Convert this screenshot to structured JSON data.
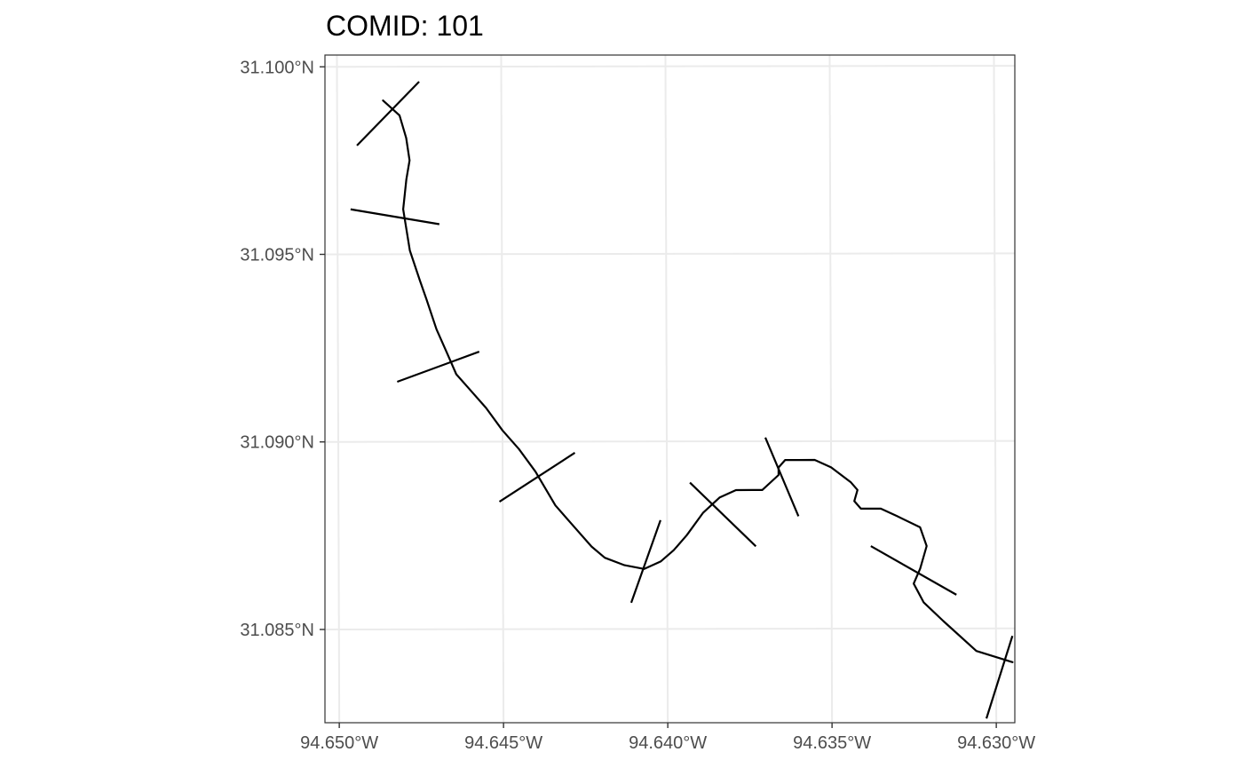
{
  "title": "COMID: 101",
  "chart_data": {
    "type": "map",
    "title": "COMID: 101",
    "xlabel": "",
    "ylabel": "",
    "x_ticks": [
      "94.650°W",
      "94.645°W",
      "94.640°W",
      "94.635°W",
      "94.630°W"
    ],
    "y_ticks": [
      "31.100°N",
      "31.095°N",
      "31.090°N",
      "31.085°N"
    ],
    "x_tick_values": [
      -94.65,
      -94.645,
      -94.64,
      -94.635,
      -94.63
    ],
    "y_tick_values": [
      31.1,
      31.095,
      31.09,
      31.085
    ],
    "xlim": [
      -94.6504,
      -94.6294
    ],
    "ylim": [
      31.0825,
      31.1003
    ],
    "grid": true,
    "flowline": {
      "x": [
        -94.6486,
        -94.6481,
        -94.6479,
        -94.6478,
        -94.6479,
        -94.648,
        -94.6478,
        -94.6475,
        -94.6473,
        -94.647,
        -94.6467,
        -94.6464,
        -94.646,
        -94.6455,
        -94.645,
        -94.6445,
        -94.644,
        -94.6434,
        -94.6429,
        -94.6423,
        -94.6419,
        -94.6413,
        -94.6407,
        -94.6402,
        -94.6398,
        -94.6394,
        -94.6389,
        -94.6384,
        -94.6379,
        -94.6374,
        -94.6371,
        -94.6366,
        -94.6366,
        -94.6364,
        -94.636,
        -94.6355,
        -94.635,
        -94.6344,
        -94.6342,
        -94.6343,
        -94.6341,
        -94.6335,
        -94.633,
        -94.6323,
        -94.6321,
        -94.6323,
        -94.6325,
        -94.6322,
        -94.6316,
        -94.6306,
        -94.6295
      ],
      "y": [
        31.0991,
        31.0987,
        31.0981,
        31.0975,
        31.097,
        31.0962,
        31.0951,
        31.0943,
        31.0938,
        31.093,
        31.0924,
        31.0918,
        31.0914,
        31.0909,
        31.0903,
        31.0898,
        31.0892,
        31.0883,
        31.0878,
        31.0872,
        31.0869,
        31.0867,
        31.0866,
        31.0868,
        31.0871,
        31.0875,
        31.0881,
        31.0885,
        31.0887,
        31.0887,
        31.0887,
        31.0891,
        31.0893,
        31.0895,
        31.0895,
        31.0895,
        31.0893,
        31.0889,
        31.0887,
        31.0884,
        31.0882,
        31.0882,
        31.088,
        31.0877,
        31.0872,
        31.0866,
        31.0862,
        31.0857,
        31.0852,
        31.0844,
        31.0841
      ]
    },
    "transects": [
      {
        "x": [
          -94.6475,
          -94.6494
        ],
        "y": [
          31.0996,
          31.0979
        ]
      },
      {
        "x": [
          -94.6496,
          -94.6469
        ],
        "y": [
          31.0962,
          31.0958
        ]
      },
      {
        "x": [
          -94.6457,
          -94.6482
        ],
        "y": [
          31.0924,
          31.0916
        ]
      },
      {
        "x": [
          -94.6428,
          -94.6451
        ],
        "y": [
          31.0897,
          31.0884
        ]
      },
      {
        "x": [
          -94.6402,
          -94.6411
        ],
        "y": [
          31.0879,
          31.0857
        ]
      },
      {
        "x": [
          -94.6373,
          -94.6393
        ],
        "y": [
          31.0872,
          31.0889
        ]
      },
      {
        "x": [
          -94.636,
          -94.637
        ],
        "y": [
          31.088,
          31.0901
        ]
      },
      {
        "x": [
          -94.6312,
          -94.6338
        ],
        "y": [
          31.0859,
          31.0872
        ]
      },
      {
        "x": [
          -94.6295,
          -94.6303
        ],
        "y": [
          31.0848,
          31.0826
        ]
      }
    ],
    "colors": {
      "line": "#000000",
      "grid": "#ebebeb",
      "border": "#333333",
      "tick_text": "#4d4d4d"
    }
  }
}
